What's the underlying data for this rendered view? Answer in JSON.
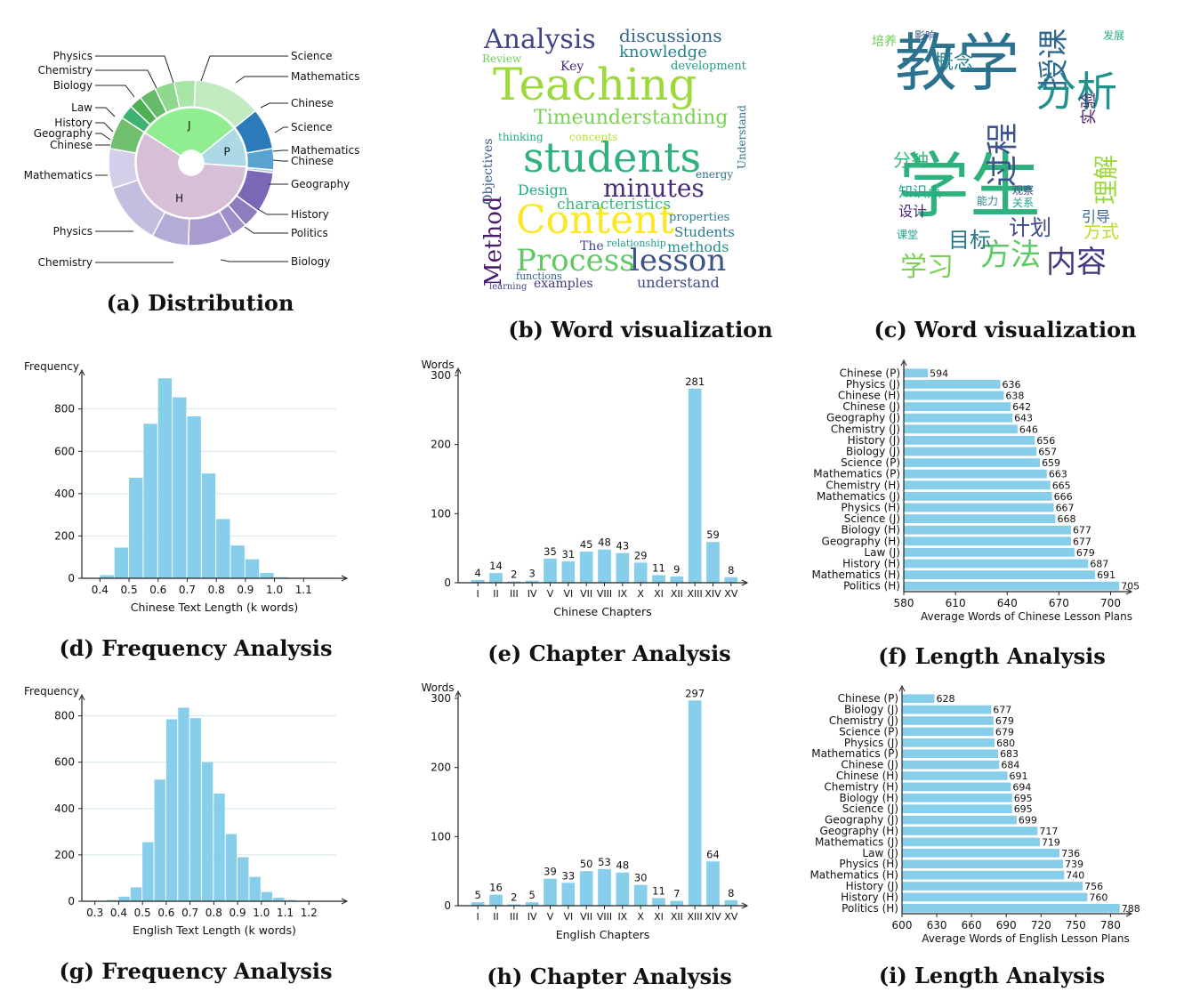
{
  "captions": {
    "a": "(a) Distribution",
    "b": "(b) Word visualization",
    "c": "(c) Word visualization",
    "d": "(d) Frequency Analysis",
    "e": "(e) Chapter Analysis",
    "f": "(f) Length Analysis",
    "g": "(g) Frequency Analysis",
    "h": "(h) Chapter Analysis",
    "i": "(i) Length Analysis"
  },
  "colors": {
    "bar": "#87ceeb",
    "grid": "#d5e6ee",
    "J": "#90ee90",
    "P": "#add8e6",
    "H": "#d8bfd8"
  },
  "sunburst": {
    "inner": [
      {
        "label": "J",
        "value": 0.3
      },
      {
        "label": "P",
        "value": 0.12
      },
      {
        "label": "H",
        "value": 0.58
      }
    ],
    "outer_labels_left": [
      "Physics",
      "Chemistry",
      "Biology",
      "Law",
      "History",
      "Geography",
      "Chinese",
      "Mathematics",
      "Physics",
      "Chemistry"
    ],
    "outer_labels_right": [
      "Science",
      "Mathematics",
      "Chinese",
      "Science",
      "Mathematics",
      "Chinese",
      "Geography",
      "History",
      "Politics",
      "Biology"
    ]
  },
  "wordcloud_en": [
    {
      "text": "Teaching",
      "color": "#9dd93a",
      "size": 50
    },
    {
      "text": "students",
      "color": "#2db27d",
      "size": 46
    },
    {
      "text": "Content",
      "color": "#fde725",
      "size": 44
    },
    {
      "text": "Process",
      "color": "#5ec962",
      "size": 34
    },
    {
      "text": "lesson",
      "color": "#3b528b",
      "size": 34
    },
    {
      "text": "Analysis",
      "color": "#414487",
      "size": 30
    },
    {
      "text": "minutes",
      "color": "#472d7b",
      "size": 28
    },
    {
      "text": "Method",
      "color": "#481a6c",
      "size": 26
    },
    {
      "text": "Timeunderstanding",
      "color": "#7ad151",
      "size": 22
    },
    {
      "text": "discussions",
      "color": "#31688e",
      "size": 20
    },
    {
      "text": "knowledge",
      "color": "#26828e",
      "size": 18
    },
    {
      "text": "characteristics",
      "color": "#35b779",
      "size": 17
    },
    {
      "text": "methods",
      "color": "#21918c",
      "size": 16
    },
    {
      "text": "Students",
      "color": "#2a788e",
      "size": 15
    },
    {
      "text": "understand",
      "color": "#3e4a89",
      "size": 16
    },
    {
      "text": "Design",
      "color": "#22a884",
      "size": 16
    },
    {
      "text": "examples",
      "color": "#443983",
      "size": 14
    },
    {
      "text": "Objectives",
      "color": "#38598c",
      "size": 14
    },
    {
      "text": "development",
      "color": "#1f9e89",
      "size": 13
    },
    {
      "text": "properties",
      "color": "#277f8e",
      "size": 13
    },
    {
      "text": "Understand",
      "color": "#2c728e",
      "size": 12
    },
    {
      "text": "Review",
      "color": "#6ece58",
      "size": 12
    },
    {
      "text": "concepts",
      "color": "#b5de2b",
      "size": 12
    },
    {
      "text": "thinking",
      "color": "#25ac82",
      "size": 12
    },
    {
      "text": "Key",
      "color": "#482878",
      "size": 14
    },
    {
      "text": "The",
      "color": "#3f4889",
      "size": 14
    },
    {
      "text": "energy",
      "color": "#2e6f8e",
      "size": 12
    },
    {
      "text": "relationship",
      "color": "#1fa187",
      "size": 11
    },
    {
      "text": "functions",
      "color": "#33638d",
      "size": 11
    },
    {
      "text": "learning",
      "color": "#404588",
      "size": 10
    }
  ],
  "wordcloud_zh": [
    {
      "text": "学生",
      "color": "#2db27d",
      "size": 80
    },
    {
      "text": "教学",
      "color": "#2c728e",
      "size": 70
    },
    {
      "text": "分析",
      "color": "#21918c",
      "size": 46
    },
    {
      "text": "过程",
      "color": "#3b528b",
      "size": 36
    },
    {
      "text": "授课",
      "color": "#31688e",
      "size": 34
    },
    {
      "text": "方法",
      "color": "#5ec962",
      "size": 34
    },
    {
      "text": "内容",
      "color": "#443983",
      "size": 34
    },
    {
      "text": "学习",
      "color": "#7ad151",
      "size": 30
    },
    {
      "text": "理解",
      "color": "#9dd93a",
      "size": 28
    },
    {
      "text": "计划",
      "color": "#3e4a89",
      "size": 24
    },
    {
      "text": "目标",
      "color": "#2a788e",
      "size": 24
    },
    {
      "text": "概念",
      "color": "#26828e",
      "size": 22
    },
    {
      "text": "方式",
      "color": "#b5de2b",
      "size": 20
    },
    {
      "text": "分钟",
      "color": "#35b779",
      "size": 20
    },
    {
      "text": "实验",
      "color": "#481a6c",
      "size": 18
    },
    {
      "text": "知识点",
      "color": "#22a884",
      "size": 16
    },
    {
      "text": "设计",
      "color": "#482878",
      "size": 16
    },
    {
      "text": "引导",
      "color": "#33638d",
      "size": 16
    },
    {
      "text": "培养",
      "color": "#6ece58",
      "size": 14
    },
    {
      "text": "影响",
      "color": "#38598c",
      "size": 12
    },
    {
      "text": "课堂",
      "color": "#1f9e89",
      "size": 12
    },
    {
      "text": "能力",
      "color": "#277f8e",
      "size": 12
    },
    {
      "text": "关系",
      "color": "#1fa187",
      "size": 12
    },
    {
      "text": "观察",
      "color": "#404588",
      "size": 12
    },
    {
      "text": "发展",
      "color": "#25ac82",
      "size": 12
    }
  ],
  "chart_data": [
    {
      "id": "d",
      "type": "bar",
      "xlabel": "Chinese Text Length (k words)",
      "ylabel": "Frequency",
      "xticks": [
        "0.4",
        "0.5",
        "0.6",
        "0.7",
        "0.8",
        "0.9",
        "1.0",
        "1.1"
      ],
      "xtick_values": [
        0.4,
        0.5,
        0.6,
        0.7,
        0.8,
        0.9,
        1.0,
        1.1
      ],
      "xlim": [
        0.35,
        1.2
      ],
      "yticks": [
        0,
        200,
        400,
        600,
        800
      ],
      "ylim": [
        0,
        950
      ],
      "bin_start": 0.4,
      "bin_width": 0.05,
      "values": [
        15,
        145,
        475,
        730,
        945,
        855,
        765,
        495,
        280,
        155,
        90,
        25,
        5,
        2
      ]
    },
    {
      "id": "e",
      "type": "bar",
      "xlabel": "Chinese Chapters",
      "ylabel": "Words",
      "categories": [
        "I",
        "II",
        "III",
        "IV",
        "V",
        "VI",
        "VII",
        "VIII",
        "IX",
        "X",
        "XI",
        "XII",
        "XIII",
        "XIV",
        "XV"
      ],
      "values": [
        4,
        14,
        2,
        3,
        35,
        31,
        45,
        48,
        43,
        29,
        11,
        9,
        281,
        59,
        8
      ],
      "yticks": [
        0,
        100,
        200,
        300
      ],
      "ylim": [
        0,
        300
      ]
    },
    {
      "id": "f",
      "type": "bar",
      "orientation": "horizontal",
      "xlabel": "Average Words of Chinese Lesson Plans",
      "categories": [
        "Chinese (P)",
        "Physics (J)",
        "Chinese (H)",
        "Chinese (J)",
        "Geography (J)",
        "Chemistry (J)",
        "History (J)",
        "Biology (J)",
        "Science (P)",
        "Mathematics (P)",
        "Chemistry (H)",
        "Mathematics (J)",
        "Physics (H)",
        "Science (J)",
        "Biology (H)",
        "Geography (H)",
        "Law (J)",
        "History (H)",
        "Mathematics (H)",
        "Politics (H)"
      ],
      "values": [
        594,
        636,
        638,
        642,
        643,
        646,
        656,
        657,
        659,
        663,
        665,
        666,
        667,
        668,
        677,
        677,
        679,
        687,
        691,
        705
      ],
      "xticks": [
        580,
        610,
        640,
        670,
        700
      ],
      "xlim": [
        580,
        708
      ]
    },
    {
      "id": "g",
      "type": "bar",
      "xlabel": "English Text Length (k words)",
      "ylabel": "Frequency",
      "xticks": [
        "0.3",
        "0.4",
        "0.5",
        "0.6",
        "0.7",
        "0.8",
        "0.9",
        "1.0",
        "1.1",
        "1.2"
      ],
      "xtick_values": [
        0.3,
        0.4,
        0.5,
        0.6,
        0.7,
        0.8,
        0.9,
        1.0,
        1.1,
        1.2
      ],
      "xlim": [
        0.26,
        1.3
      ],
      "yticks": [
        0,
        200,
        400,
        600,
        800
      ],
      "ylim": [
        0,
        860
      ],
      "bin_start": 0.3,
      "bin_width": 0.05,
      "values": [
        2,
        5,
        20,
        60,
        255,
        525,
        785,
        835,
        790,
        600,
        465,
        290,
        190,
        105,
        40,
        15,
        5,
        2
      ]
    },
    {
      "id": "h",
      "type": "bar",
      "xlabel": "English Chapters",
      "ylabel": "Words",
      "categories": [
        "I",
        "II",
        "III",
        "IV",
        "V",
        "VI",
        "VII",
        "VIII",
        "IX",
        "X",
        "XI",
        "XII",
        "XIII",
        "XIV",
        "XV"
      ],
      "values": [
        5,
        16,
        2,
        5,
        39,
        33,
        50,
        53,
        48,
        30,
        11,
        7,
        297,
        64,
        8
      ],
      "yticks": [
        0,
        100,
        200,
        300
      ],
      "ylim": [
        0,
        300
      ]
    },
    {
      "id": "i",
      "type": "bar",
      "orientation": "horizontal",
      "xlabel": "Average Words of English Lesson Plans",
      "categories": [
        "Chinese (P)",
        "Biology (J)",
        "Chemistry (J)",
        "Science (P)",
        "Physics (J)",
        "Mathematics (P)",
        "Chinese (J)",
        "Chinese (H)",
        "Chemistry (H)",
        "Biology (H)",
        "Science (J)",
        "Geography (J)",
        "Geography (H)",
        "Mathematics (J)",
        "Law (J)",
        "Physics (H)",
        "Mathematics (H)",
        "History (J)",
        "History (H)",
        "Politics (H)"
      ],
      "values": [
        628,
        677,
        679,
        679,
        680,
        683,
        684,
        691,
        694,
        695,
        695,
        699,
        717,
        719,
        736,
        739,
        740,
        756,
        760,
        788
      ],
      "xticks": [
        600,
        630,
        660,
        690,
        720,
        750,
        780
      ],
      "xlim": [
        600,
        792
      ]
    }
  ]
}
